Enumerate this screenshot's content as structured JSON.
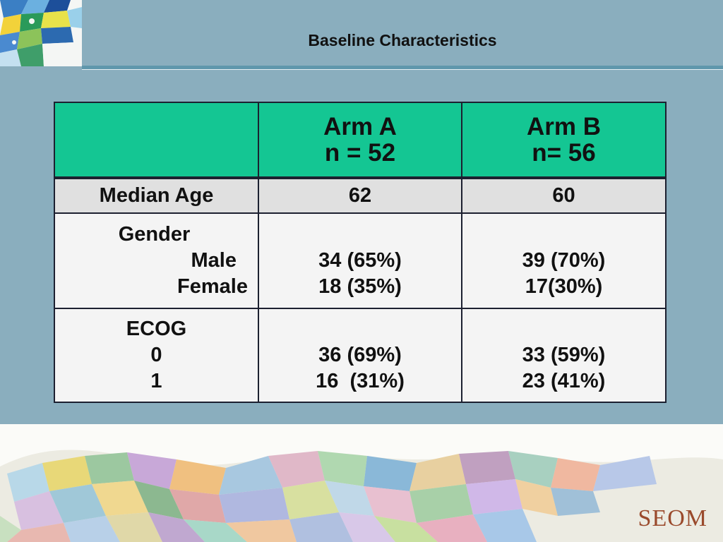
{
  "slide": {
    "title": "Baseline Characteristics",
    "brand": "SEOM"
  },
  "table": {
    "header": {
      "col1": "",
      "arm_a": {
        "name": "Arm A",
        "n": "n = 52"
      },
      "arm_b": {
        "name": "Arm B",
        "n": "n= 56"
      }
    },
    "rows": [
      {
        "label": [
          "Median Age"
        ],
        "arm_a": [
          "62"
        ],
        "arm_b": [
          "60"
        ]
      },
      {
        "label": [
          "Gender",
          "Male",
          "Female"
        ],
        "arm_a": [
          "34 (65%)",
          "18 (35%)"
        ],
        "arm_b": [
          "39 (70%)",
          "17(30%)"
        ]
      },
      {
        "label": [
          "ECOG",
          "0",
          "1"
        ],
        "arm_a": [
          "36 (69%)",
          "16  (31%)"
        ],
        "arm_b": [
          "33 (59%)",
          "23 (41%)"
        ]
      }
    ]
  },
  "colors": {
    "background": "#8aaebe",
    "header_fill": "#14c693",
    "row_fill_dark": "#e0e0e0",
    "row_fill_light": "#f4f4f4",
    "brand_color": "#9a4a2c"
  },
  "decorations": {
    "top_left_logo": "mosaic-trencadis-logo",
    "bottom_band": "mosaic-trencadis-band"
  }
}
